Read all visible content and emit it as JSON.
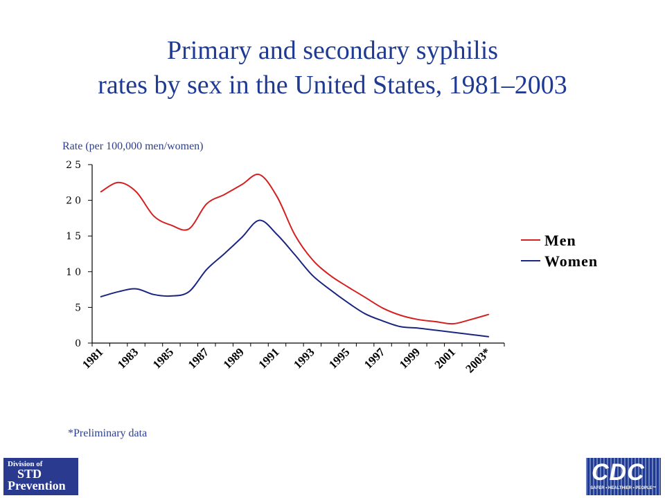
{
  "title": {
    "line1": "Primary and secondary syphilis",
    "line2": "rates by sex in the United States, 1981–2003"
  },
  "axis_label": "Rate (per 100,000 men/women)",
  "footnote": "*Preliminary data",
  "logos": {
    "std": {
      "line1": "Division of",
      "line2": "STD",
      "line3": "Prevention"
    },
    "cdc": {
      "text": "CDC",
      "tagline": "SAFER • HEALTHIER • PEOPLE™"
    }
  },
  "colors": {
    "men": "#d42020",
    "women": "#1a2580",
    "title": "#1f3a93"
  },
  "chart_data": {
    "type": "line",
    "title": "Primary and secondary syphilis rates by sex in the United States, 1981–2003",
    "ylabel": "Rate (per 100,000 men/women)",
    "xlabel": "",
    "ylim": [
      0,
      25
    ],
    "yticks": [
      "0",
      "5",
      "10",
      "15",
      "20",
      "25"
    ],
    "xtick_labels": [
      "1981",
      "1983",
      "1985",
      "1987",
      "1989",
      "1991",
      "1993",
      "1995",
      "1997",
      "1999",
      "2001",
      "2003*"
    ],
    "x": [
      1981,
      1982,
      1983,
      1984,
      1985,
      1986,
      1987,
      1988,
      1989,
      1990,
      1991,
      1992,
      1993,
      1994,
      1995,
      1996,
      1997,
      1998,
      1999,
      2000,
      2001,
      2002,
      2003
    ],
    "grid": false,
    "legend_position": "right",
    "series": [
      {
        "name": "Men",
        "color": "#d42020",
        "values": [
          21.2,
          22.5,
          21.2,
          17.8,
          16.5,
          16.0,
          19.5,
          20.8,
          22.2,
          23.6,
          20.5,
          15.2,
          11.7,
          9.5,
          7.9,
          6.4,
          4.9,
          3.9,
          3.3,
          3.0,
          2.7,
          3.3,
          4.0
        ]
      },
      {
        "name": "Women",
        "color": "#1a2580",
        "values": [
          6.5,
          7.2,
          7.6,
          6.8,
          6.6,
          7.2,
          10.3,
          12.5,
          14.8,
          17.2,
          15.2,
          12.4,
          9.5,
          7.5,
          5.7,
          4.1,
          3.1,
          2.3,
          2.1,
          1.8,
          1.5,
          1.2,
          0.9
        ]
      }
    ]
  }
}
